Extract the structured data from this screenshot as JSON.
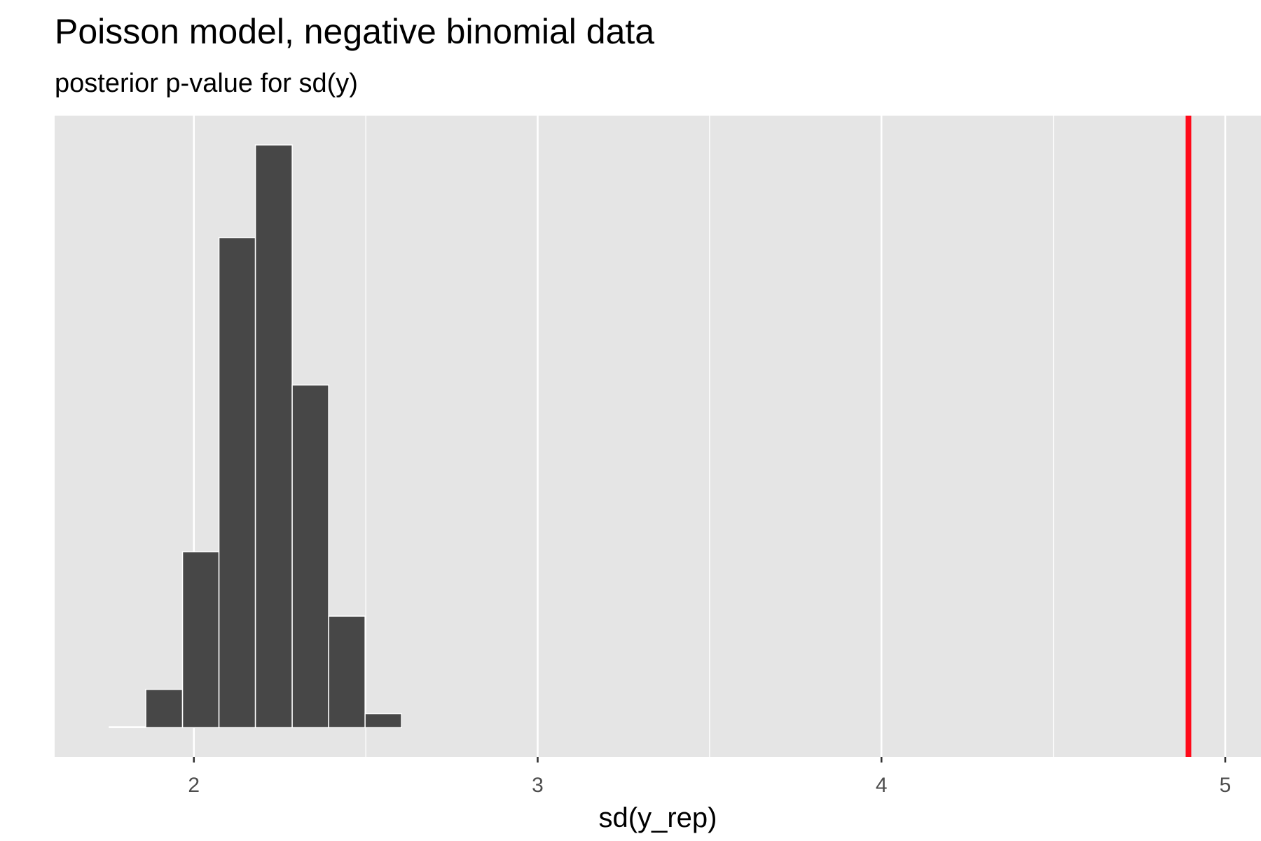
{
  "chart_data": {
    "type": "histogram",
    "title": "Poisson model, negative binomial data",
    "subtitle": "posterior p-value for sd(y)",
    "x_label": "sd(y_rep)",
    "bins": [
      1.754,
      1.86,
      1.967,
      2.073,
      2.179,
      2.286,
      2.392,
      2.498,
      2.604,
      2.711,
      2.817,
      2.923,
      3.03,
      3.136,
      3.242,
      3.349,
      3.455,
      3.561,
      3.667,
      3.774,
      3.88,
      3.986,
      4.093,
      4.199,
      4.305,
      4.412,
      4.518,
      4.624,
      4.73,
      4.837,
      4.943
    ],
    "values": [
      1,
      47,
      216,
      602,
      716,
      421,
      137,
      17,
      0,
      0,
      0,
      0,
      0,
      0,
      0,
      0,
      0,
      0,
      0,
      0,
      0,
      0,
      0,
      0,
      0,
      0,
      0,
      0,
      0,
      0
    ],
    "color": "#474747",
    "xlim": [
      1.595,
      5.104
    ],
    "ylim": [
      -36,
      752
    ],
    "xticks": [
      2,
      3,
      4,
      5
    ],
    "xminorticks": [
      2.5,
      3.5,
      4.5
    ],
    "grid": true,
    "vline": {
      "value": 4.893,
      "color": "#ff0a1a"
    }
  }
}
